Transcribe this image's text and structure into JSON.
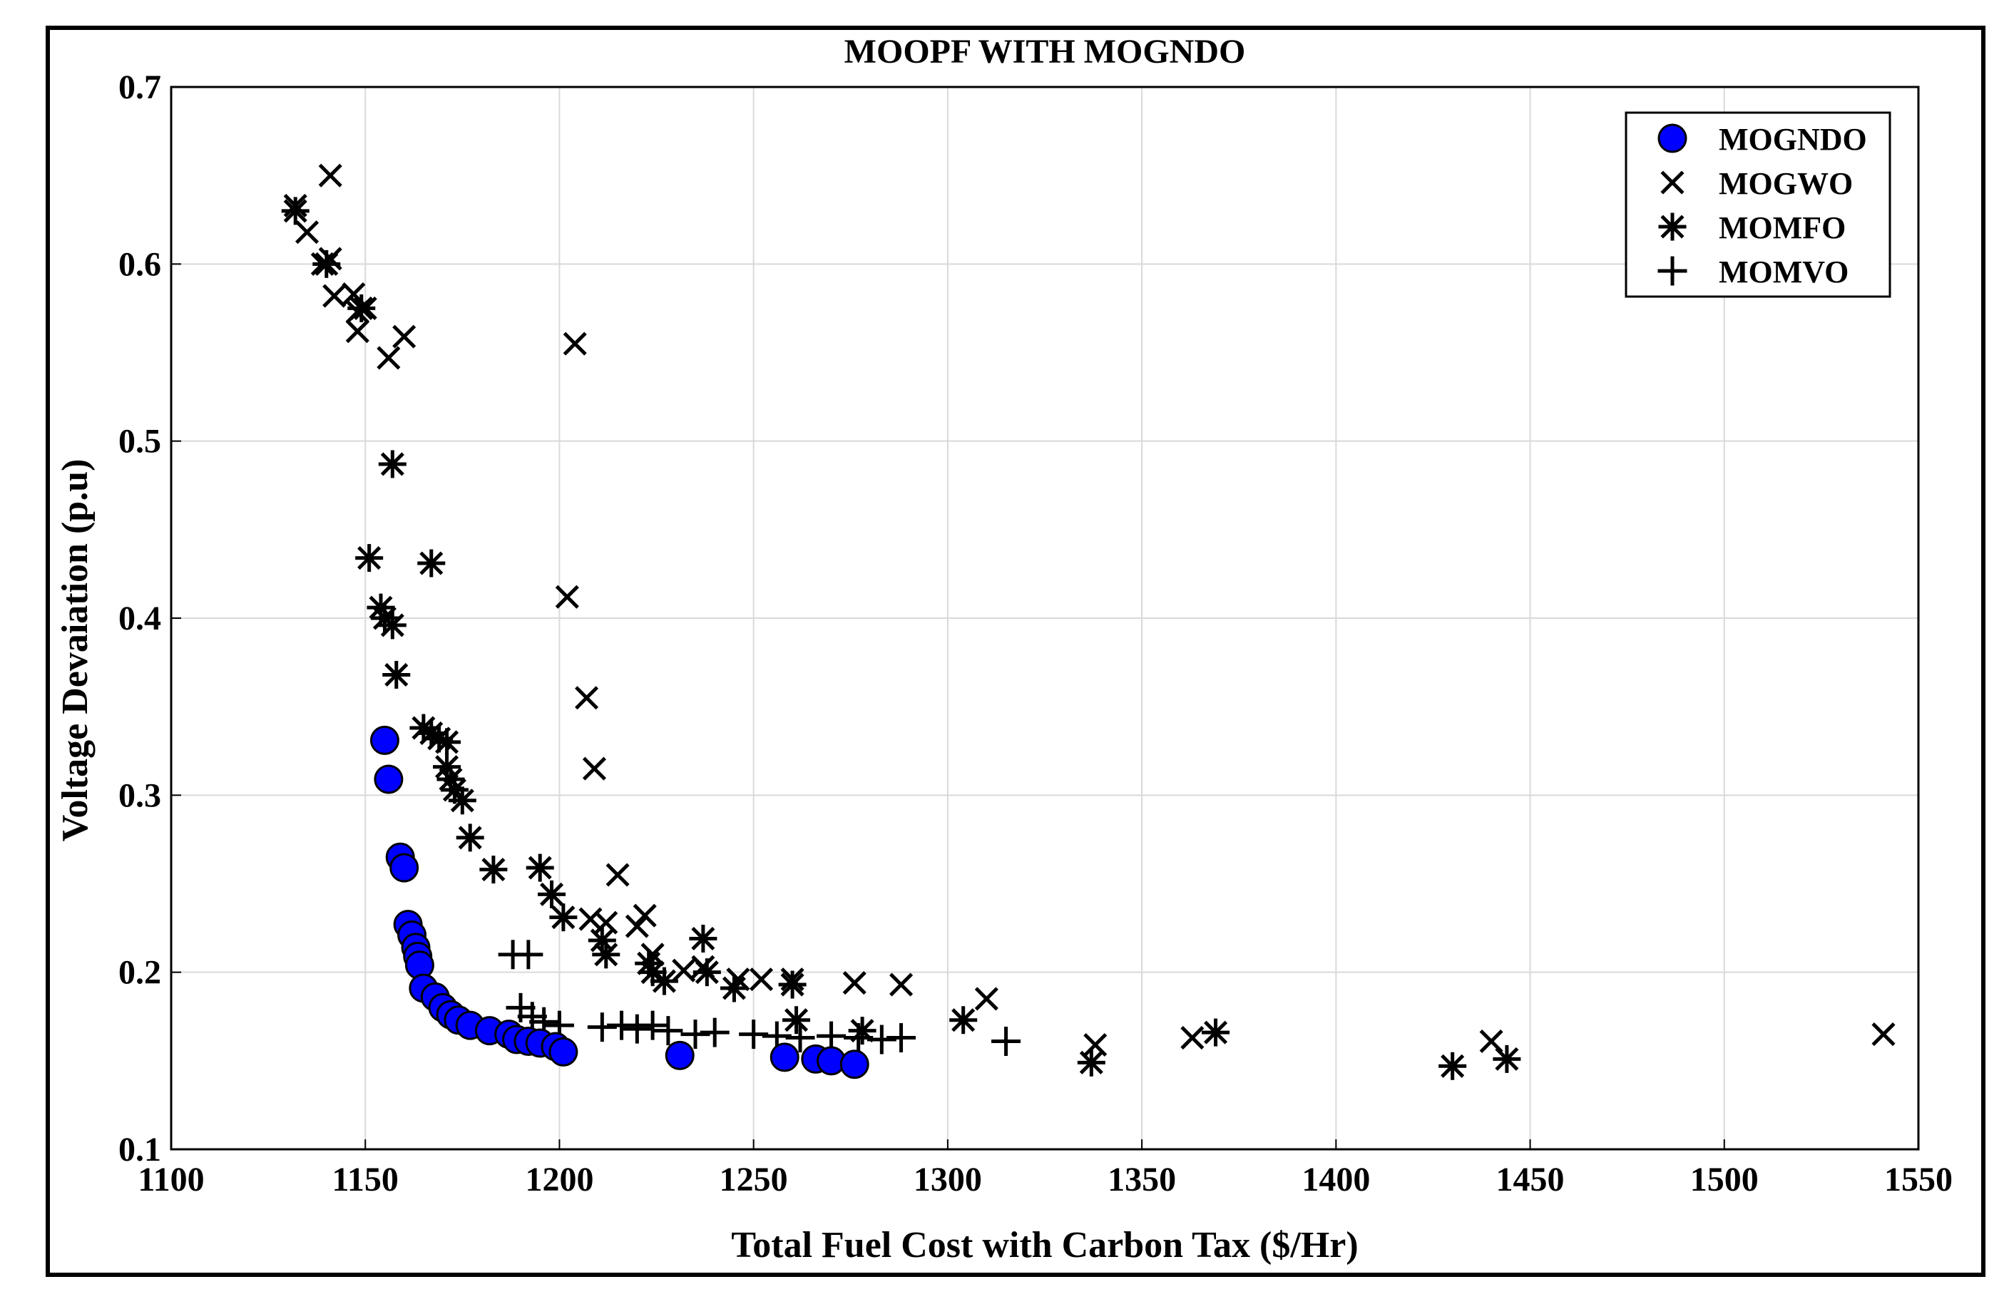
{
  "chart_data": {
    "type": "scatter",
    "title": "MOOPF WITH MOGNDO",
    "xlabel": "Total Fuel Cost with Carbon Tax ($/Hr)",
    "ylabel": "Voltage Devaiation (p.u)",
    "xlim": [
      1100,
      1550
    ],
    "ylim": [
      0.1,
      0.7
    ],
    "xticks": [
      "1100",
      "1150",
      "1200",
      "1250",
      "1300",
      "1350",
      "1400",
      "1450",
      "1500",
      "1550"
    ],
    "yticks": [
      "0.1",
      "0.2",
      "0.3",
      "0.4",
      "0.5",
      "0.6",
      "0.7"
    ],
    "grid": true,
    "legend_position": "top-right",
    "colors": {
      "mogndo_fill": "#0000ff",
      "marker": "#000000",
      "grid": "#d9d9d9"
    },
    "series": [
      {
        "name": "MOGNDO",
        "marker": "circle",
        "points": [
          [
            1155,
            0.331
          ],
          [
            1156,
            0.309
          ],
          [
            1159,
            0.265
          ],
          [
            1160,
            0.259
          ],
          [
            1161,
            0.227
          ],
          [
            1162,
            0.221
          ],
          [
            1163,
            0.214
          ],
          [
            1163.5,
            0.209
          ],
          [
            1164,
            0.204
          ],
          [
            1165,
            0.191
          ],
          [
            1168,
            0.186
          ],
          [
            1170,
            0.18
          ],
          [
            1172,
            0.176
          ],
          [
            1174,
            0.173
          ],
          [
            1177,
            0.17
          ],
          [
            1182,
            0.167
          ],
          [
            1187,
            0.165
          ],
          [
            1189,
            0.162
          ],
          [
            1192,
            0.161
          ],
          [
            1195,
            0.16
          ],
          [
            1199,
            0.158
          ],
          [
            1201,
            0.155
          ],
          [
            1231,
            0.153
          ],
          [
            1258,
            0.152
          ],
          [
            1266,
            0.151
          ],
          [
            1270,
            0.15
          ],
          [
            1276,
            0.148
          ]
        ]
      },
      {
        "name": "MOGWO",
        "marker": "x",
        "points": [
          [
            1132,
            0.633
          ],
          [
            1135,
            0.618
          ],
          [
            1139,
            0.6
          ],
          [
            1141,
            0.65
          ],
          [
            1141,
            0.603
          ],
          [
            1142,
            0.582
          ],
          [
            1147,
            0.583
          ],
          [
            1148,
            0.573
          ],
          [
            1148,
            0.562
          ],
          [
            1150,
            0.575
          ],
          [
            1156,
            0.547
          ],
          [
            1160,
            0.559
          ],
          [
            1204,
            0.555
          ],
          [
            1202,
            0.412
          ],
          [
            1207,
            0.355
          ],
          [
            1209,
            0.315
          ],
          [
            1215,
            0.255
          ],
          [
            1208,
            0.23
          ],
          [
            1212,
            0.228
          ],
          [
            1220,
            0.226
          ],
          [
            1222,
            0.232
          ],
          [
            1224,
            0.21
          ],
          [
            1232,
            0.201
          ],
          [
            1237,
            0.203
          ],
          [
            1246,
            0.196
          ],
          [
            1252,
            0.196
          ],
          [
            1260,
            0.196
          ],
          [
            1276,
            0.194
          ],
          [
            1288,
            0.193
          ],
          [
            1310,
            0.185
          ],
          [
            1338,
            0.159
          ],
          [
            1363,
            0.163
          ],
          [
            1440,
            0.161
          ],
          [
            1541,
            0.165
          ]
        ]
      },
      {
        "name": "MOMFO",
        "marker": "asterisk",
        "points": [
          [
            1132,
            0.63
          ],
          [
            1140,
            0.6
          ],
          [
            1149,
            0.575
          ],
          [
            1157,
            0.487
          ],
          [
            1151,
            0.434
          ],
          [
            1167,
            0.431
          ],
          [
            1154,
            0.406
          ],
          [
            1155,
            0.4
          ],
          [
            1157,
            0.396
          ],
          [
            1158,
            0.368
          ],
          [
            1165,
            0.338
          ],
          [
            1167,
            0.335
          ],
          [
            1169,
            0.332
          ],
          [
            1171,
            0.33
          ],
          [
            1171,
            0.316
          ],
          [
            1172,
            0.309
          ],
          [
            1173,
            0.303
          ],
          [
            1175,
            0.297
          ],
          [
            1177,
            0.276
          ],
          [
            1183,
            0.258
          ],
          [
            1195,
            0.259
          ],
          [
            1198,
            0.244
          ],
          [
            1201,
            0.231
          ],
          [
            1211,
            0.218
          ],
          [
            1212,
            0.21
          ],
          [
            1223,
            0.205
          ],
          [
            1224,
            0.2
          ],
          [
            1227,
            0.195
          ],
          [
            1237,
            0.219
          ],
          [
            1238,
            0.2
          ],
          [
            1245,
            0.191
          ],
          [
            1260,
            0.193
          ],
          [
            1261,
            0.173
          ],
          [
            1278,
            0.167
          ],
          [
            1304,
            0.173
          ],
          [
            1337,
            0.149
          ],
          [
            1369,
            0.166
          ],
          [
            1430,
            0.147
          ],
          [
            1444,
            0.151
          ]
        ]
      },
      {
        "name": "MOMVO",
        "marker": "plus",
        "points": [
          [
            1188,
            0.21
          ],
          [
            1192,
            0.21
          ],
          [
            1190,
            0.18
          ],
          [
            1193,
            0.175
          ],
          [
            1196,
            0.172
          ],
          [
            1200,
            0.17
          ],
          [
            1211,
            0.169
          ],
          [
            1216,
            0.17
          ],
          [
            1220,
            0.168
          ],
          [
            1224,
            0.17
          ],
          [
            1228,
            0.167
          ],
          [
            1235,
            0.165
          ],
          [
            1240,
            0.166
          ],
          [
            1250,
            0.165
          ],
          [
            1256,
            0.164
          ],
          [
            1262,
            0.163
          ],
          [
            1270,
            0.164
          ],
          [
            1277,
            0.163
          ],
          [
            1283,
            0.162
          ],
          [
            1288,
            0.163
          ],
          [
            1315,
            0.161
          ]
        ]
      }
    ]
  }
}
